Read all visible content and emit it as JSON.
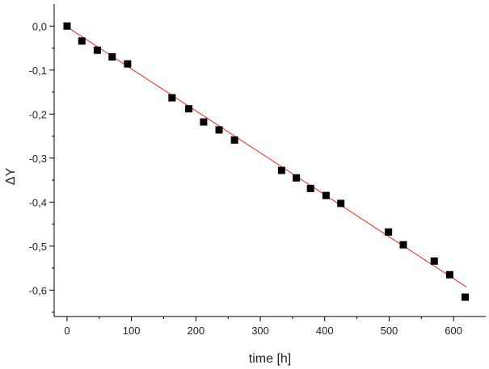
{
  "chart_data": {
    "type": "scatter",
    "title": "",
    "xlabel": "time [h]",
    "ylabel": "ΔY",
    "xlim": [
      -20,
      650
    ],
    "ylim": [
      -0.66,
      0.05
    ],
    "x_ticks": [
      0,
      100,
      200,
      300,
      400,
      500,
      600
    ],
    "x_tick_labels": [
      "0",
      "100",
      "200",
      "300",
      "400",
      "500",
      "600"
    ],
    "y_ticks": [
      0.0,
      -0.1,
      -0.2,
      -0.3,
      -0.4,
      -0.5,
      -0.6
    ],
    "y_tick_labels": [
      "0,0",
      "-0,1",
      "-0,2",
      "-0,3",
      "-0,4",
      "-0,5",
      "-0,6"
    ],
    "grid": false,
    "legend": "none",
    "marker_color": "#000000",
    "fit_color": "#e8291c",
    "fit_line": {
      "x_start": 0,
      "y_start": -0.002,
      "x_end": 620,
      "y_end": -0.593
    },
    "series": [
      {
        "values": [
          {
            "x": 0,
            "y": 0.0
          },
          {
            "x": 23,
            "y": -0.034
          },
          {
            "x": 47,
            "y": -0.055
          },
          {
            "x": 70,
            "y": -0.07
          },
          {
            "x": 94,
            "y": -0.086
          },
          {
            "x": 163,
            "y": -0.163
          },
          {
            "x": 189,
            "y": -0.188
          },
          {
            "x": 212,
            "y": -0.218
          },
          {
            "x": 236,
            "y": -0.236
          },
          {
            "x": 260,
            "y": -0.259
          },
          {
            "x": 333,
            "y": -0.328
          },
          {
            "x": 356,
            "y": -0.345
          },
          {
            "x": 378,
            "y": -0.369
          },
          {
            "x": 402,
            "y": -0.385
          },
          {
            "x": 425,
            "y": -0.403
          },
          {
            "x": 499,
            "y": -0.468
          },
          {
            "x": 522,
            "y": -0.497
          },
          {
            "x": 570,
            "y": -0.534
          },
          {
            "x": 594,
            "y": -0.565
          },
          {
            "x": 618,
            "y": -0.616
          }
        ]
      }
    ]
  }
}
